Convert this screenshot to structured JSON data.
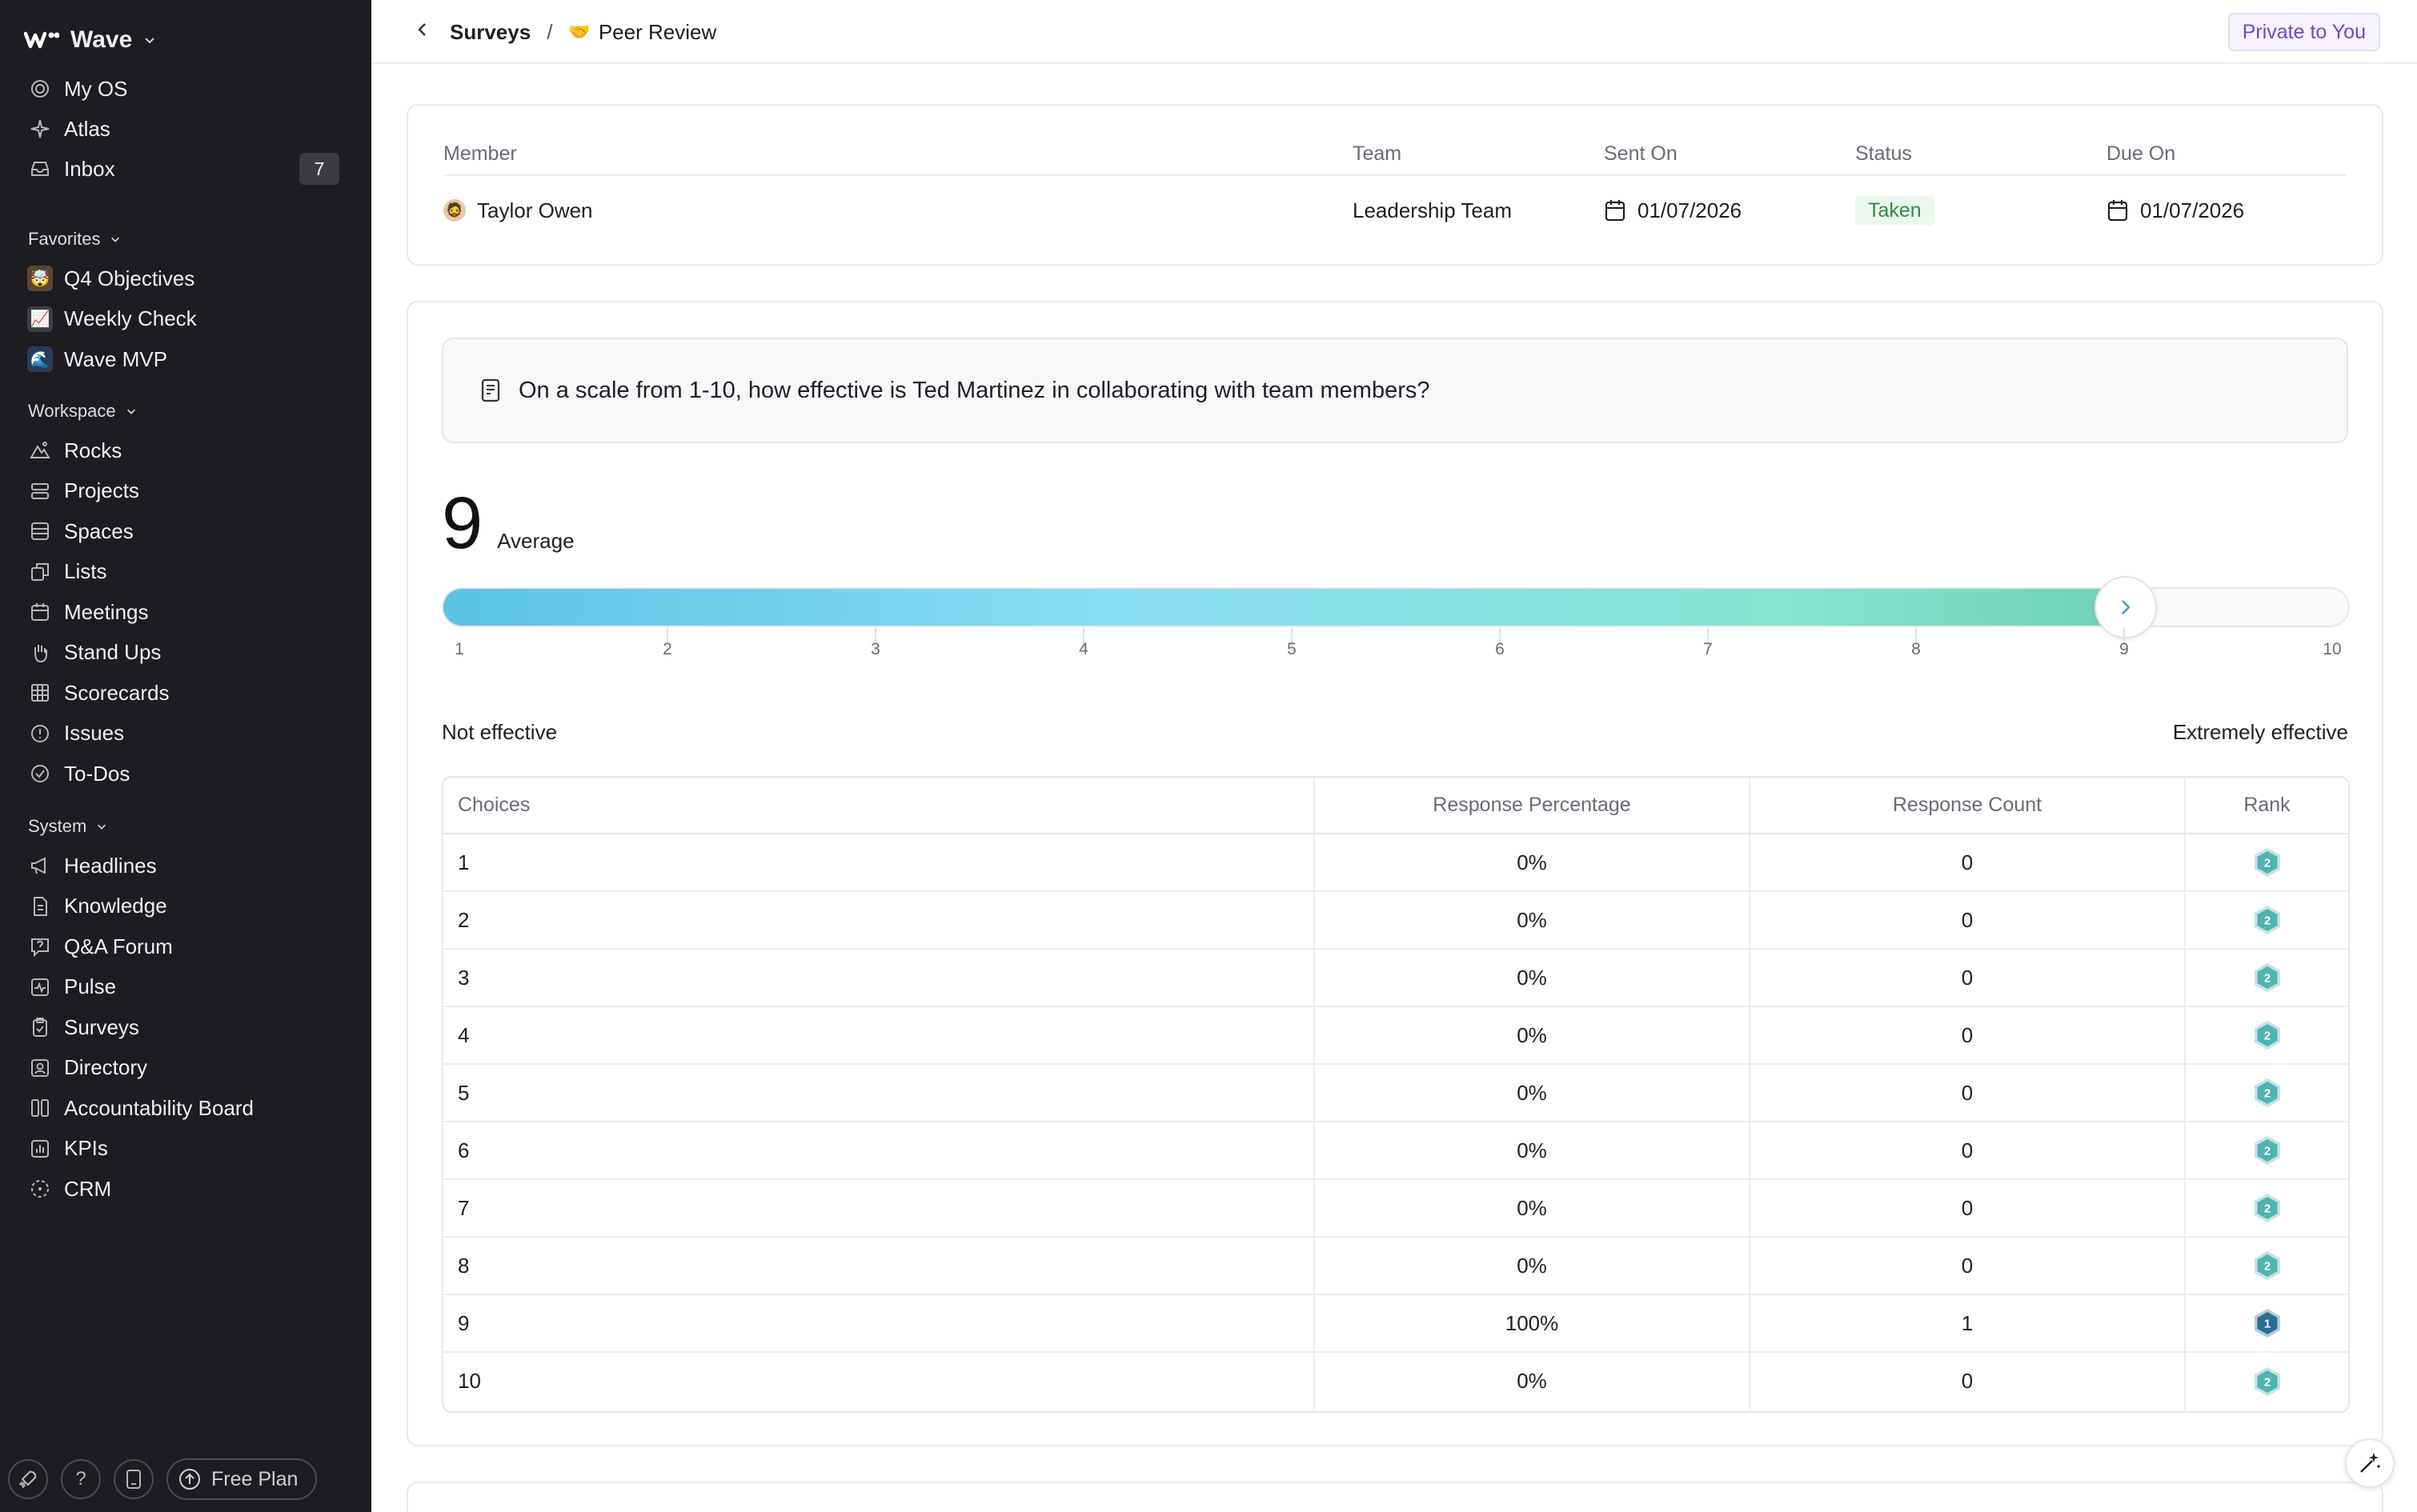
{
  "app": {
    "name": "Wave",
    "private_label": "Private to You"
  },
  "sidebar": {
    "main": [
      {
        "label": "My OS",
        "icon": "target-icon"
      },
      {
        "label": "Atlas",
        "icon": "sparkle-icon"
      },
      {
        "label": "Inbox",
        "icon": "inbox-icon",
        "badge": "7"
      }
    ],
    "favorites_label": "Favorites",
    "favorites": [
      {
        "label": "Q4 Objectives",
        "emoji": "🤯",
        "bg": "#5a4530"
      },
      {
        "label": "Weekly Check",
        "emoji": "📈",
        "bg": "#3d3d44"
      },
      {
        "label": "Wave MVP",
        "emoji": "🌊",
        "bg": "#2a3c57"
      }
    ],
    "workspace_label": "Workspace",
    "workspace": [
      {
        "label": "Rocks",
        "icon": "rocks-icon"
      },
      {
        "label": "Projects",
        "icon": "projects-icon"
      },
      {
        "label": "Spaces",
        "icon": "spaces-icon"
      },
      {
        "label": "Lists",
        "icon": "lists-icon"
      },
      {
        "label": "Meetings",
        "icon": "calendar-icon"
      },
      {
        "label": "Stand Ups",
        "icon": "hand-icon"
      },
      {
        "label": "Scorecards",
        "icon": "grid-icon"
      },
      {
        "label": "Issues",
        "icon": "alert-circle-icon"
      },
      {
        "label": "To-Dos",
        "icon": "check-circle-icon"
      }
    ],
    "system_label": "System",
    "system": [
      {
        "label": "Headlines",
        "icon": "megaphone-icon"
      },
      {
        "label": "Knowledge",
        "icon": "document-icon"
      },
      {
        "label": "Q&A Forum",
        "icon": "question-bubble-icon"
      },
      {
        "label": "Pulse",
        "icon": "pulse-icon"
      },
      {
        "label": "Surveys",
        "icon": "clipboard-icon"
      },
      {
        "label": "Directory",
        "icon": "contact-icon"
      },
      {
        "label": "Accountability Board",
        "icon": "columns-icon"
      },
      {
        "label": "KPIs",
        "icon": "bar-chart-icon"
      },
      {
        "label": "CRM",
        "icon": "dashed-circle-icon"
      }
    ],
    "bottom": {
      "help": "?",
      "plan_label": "Free Plan"
    }
  },
  "breadcrumb": {
    "parent": "Surveys",
    "separator": "/",
    "current_emoji": "🤝",
    "current": "Peer Review"
  },
  "member_table": {
    "headers": {
      "member": "Member",
      "team": "Team",
      "sent_on": "Sent On",
      "status": "Status",
      "due_on": "Due On"
    },
    "row": {
      "member": "Taylor Owen",
      "avatar_emoji": "🧔",
      "team": "Leadership Team",
      "sent_on": "01/07/2026",
      "status": "Taken",
      "due_on": "01/07/2026"
    }
  },
  "question": {
    "text": "On a scale from 1-10, how effective is Ted Martinez in collaborating with team members?"
  },
  "average": {
    "value": "9",
    "label": "Average"
  },
  "scale": {
    "min": 1,
    "max": 10,
    "value": 9,
    "ticks": [
      "1",
      "2",
      "3",
      "4",
      "5",
      "6",
      "7",
      "8",
      "9",
      "10"
    ],
    "min_label": "Not effective",
    "max_label": "Extremely effective",
    "fill_colors": [
      "#5bc3e5",
      "#6fd3b4"
    ]
  },
  "results": {
    "headers": {
      "choices": "Choices",
      "percentage": "Response Percentage",
      "count": "Response Count",
      "rank": "Rank"
    },
    "rows": [
      {
        "choice": "1",
        "percentage": "0%",
        "count": "0",
        "rank": "2"
      },
      {
        "choice": "2",
        "percentage": "0%",
        "count": "0",
        "rank": "2"
      },
      {
        "choice": "3",
        "percentage": "0%",
        "count": "0",
        "rank": "2"
      },
      {
        "choice": "4",
        "percentage": "0%",
        "count": "0",
        "rank": "2"
      },
      {
        "choice": "5",
        "percentage": "0%",
        "count": "0",
        "rank": "2"
      },
      {
        "choice": "6",
        "percentage": "0%",
        "count": "0",
        "rank": "2"
      },
      {
        "choice": "7",
        "percentage": "0%",
        "count": "0",
        "rank": "2"
      },
      {
        "choice": "8",
        "percentage": "0%",
        "count": "0",
        "rank": "2"
      },
      {
        "choice": "9",
        "percentage": "100%",
        "count": "1",
        "rank": "1"
      },
      {
        "choice": "10",
        "percentage": "0%",
        "count": "0",
        "rank": "2"
      }
    ],
    "rank_colors": {
      "1": "#2a6f92",
      "2": "#4fb3b0"
    }
  }
}
